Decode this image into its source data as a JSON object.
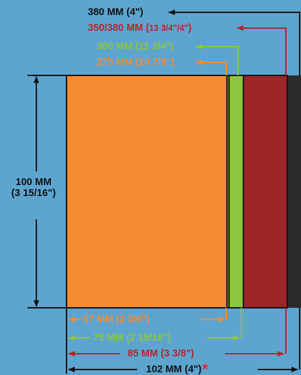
{
  "colors": {
    "background": "#5da5cf",
    "orange": "#f58a33",
    "green": "#8cc63f",
    "red": "#b3262b",
    "black": "#111111",
    "asterisk": "#e8242b"
  },
  "top_labels": {
    "size_380": "380 MM (4\")",
    "size_350_380_main": "350/380 MM (",
    "size_350_380_small": "13 3/4\"/4\"",
    "size_350_380_end": ")",
    "size_300": "300 MM (11 3/4\")",
    "size_275": "275 MM (10 7/8\")"
  },
  "height_label": {
    "line1": "100 MM",
    "line2": "(3 15/16\")"
  },
  "bottom_labels": {
    "width_67": "67 MM (2 5/6\")",
    "width_75": "75 MM (2 15/16\")",
    "width_85": "85 MM (3 3/8\")",
    "width_102": "102 MM (4\")",
    "asterisk": "*"
  }
}
